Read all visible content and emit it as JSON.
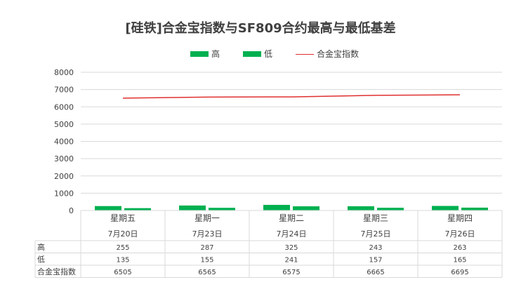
{
  "chart_data": {
    "type": "bar",
    "title": "[硅铁]合金宝指数与SF809合约最高与最低基差",
    "categories": [
      {
        "day": "星期五",
        "date": "7月20日"
      },
      {
        "day": "星期一",
        "date": "7月23日"
      },
      {
        "day": "星期二",
        "date": "7月24日"
      },
      {
        "day": "星期三",
        "date": "7月25日"
      },
      {
        "day": "星期四",
        "date": "7月26日"
      }
    ],
    "series": [
      {
        "name": "高",
        "type": "bar",
        "color": "#00b050",
        "values": [
          255,
          287,
          325,
          243,
          263
        ]
      },
      {
        "name": "低",
        "type": "bar",
        "color": "#00b050",
        "values": [
          135,
          155,
          241,
          157,
          165
        ]
      },
      {
        "name": "合金宝指数",
        "type": "line",
        "color": "#e03030",
        "values": [
          6505,
          6565,
          6575,
          6665,
          6695
        ]
      }
    ],
    "ylim": [
      0,
      8000
    ],
    "yticks": [
      "0",
      "1000",
      "2000",
      "3000",
      "4000",
      "5000",
      "6000",
      "7000",
      "8000"
    ],
    "grid": true,
    "legend_position": "top",
    "data_table": true
  }
}
